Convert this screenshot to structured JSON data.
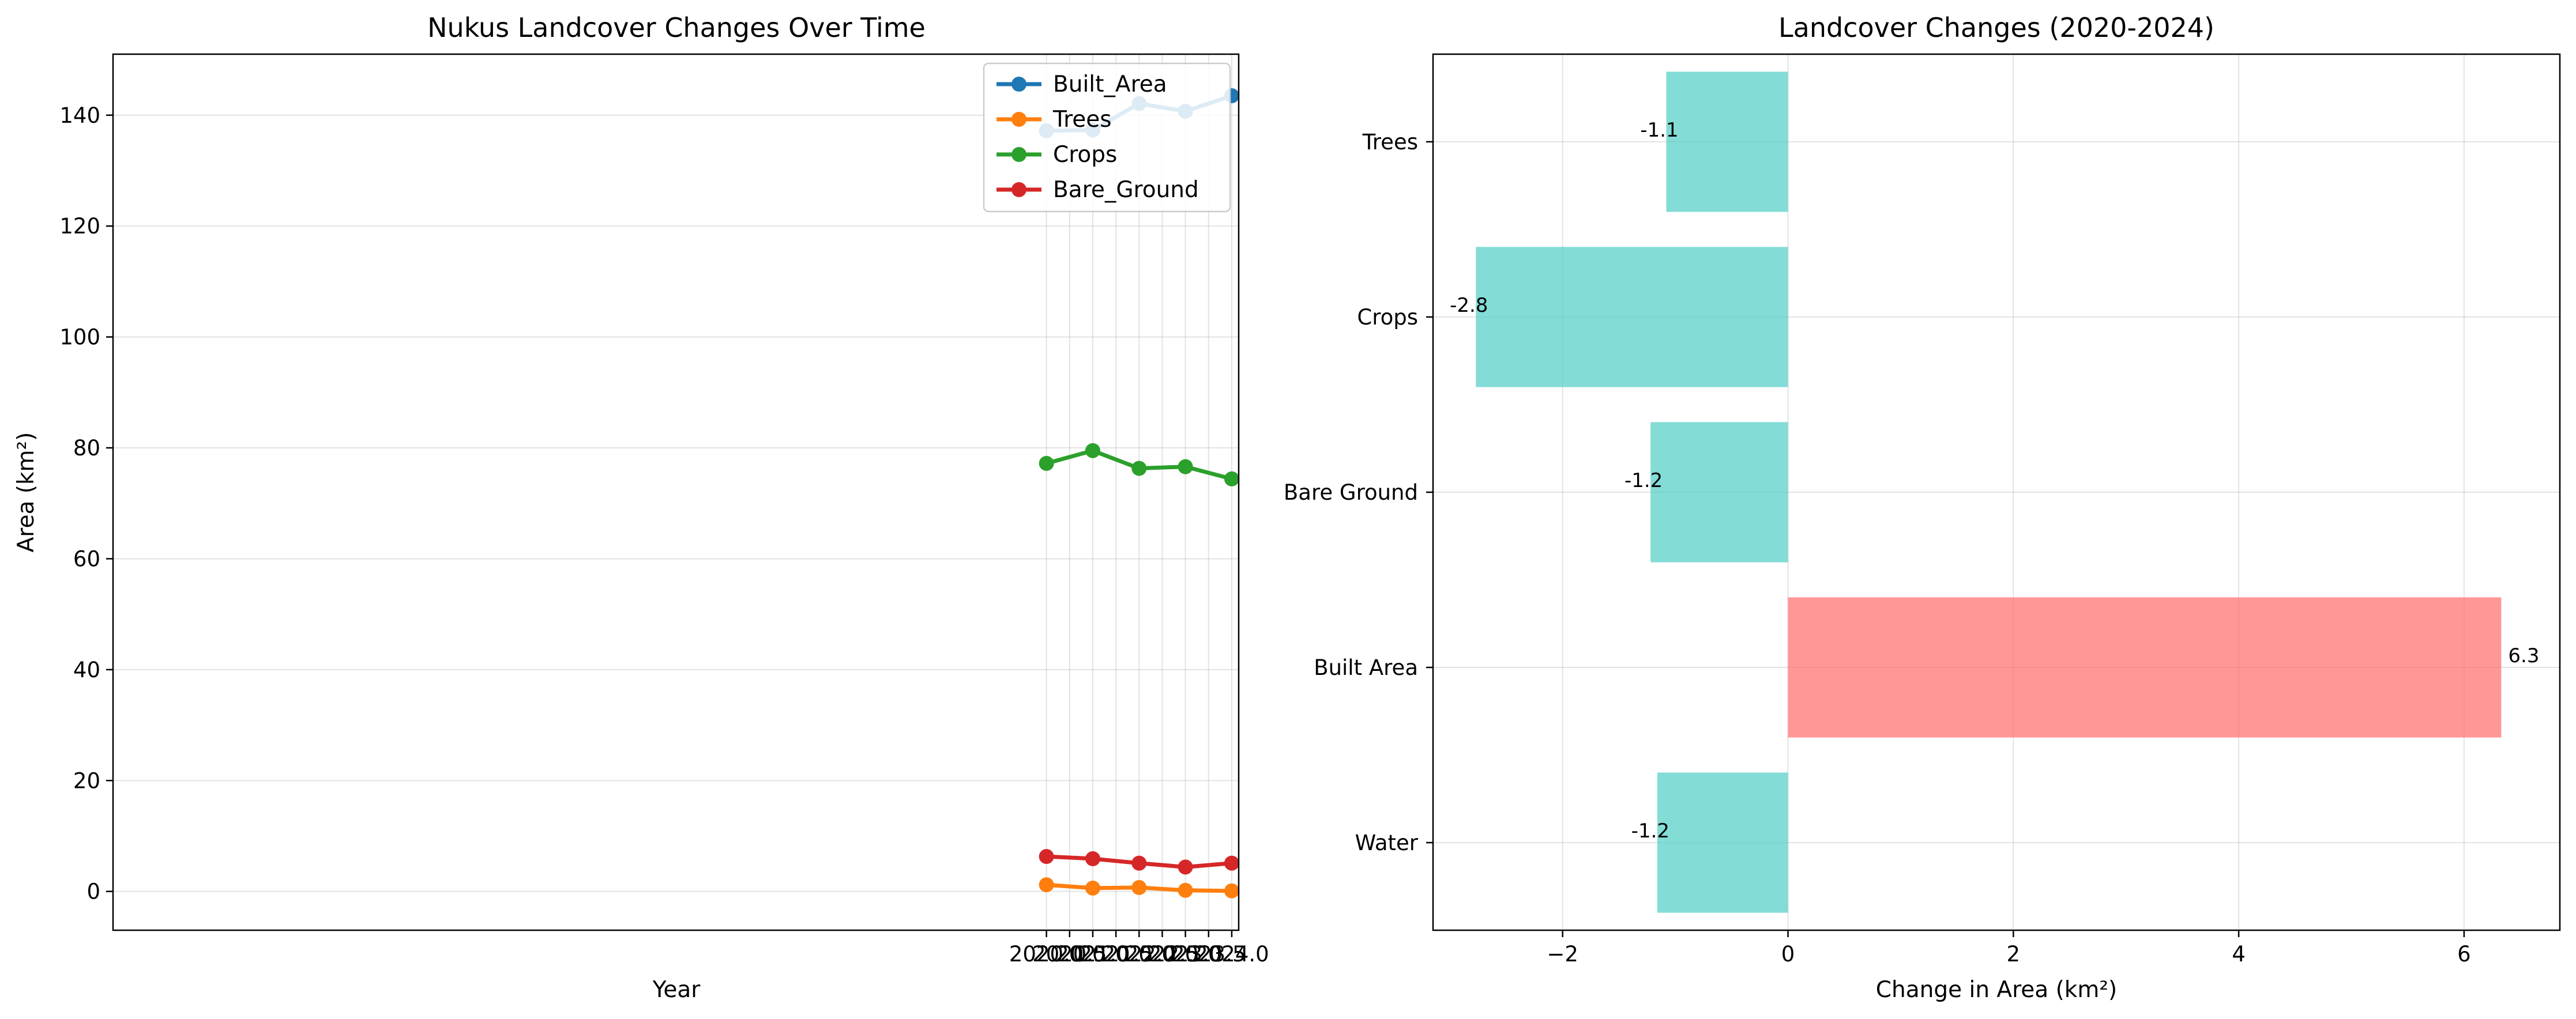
{
  "chart_data": [
    {
      "type": "line",
      "title": "Nukus Landcover Changes Over Time",
      "xlabel": "Year",
      "ylabel": "Area (km²)",
      "xlim": [
        1999.85,
        2024.15
      ],
      "ylim": [
        -7,
        151
      ],
      "x_ticks": [
        2020.0,
        2020.5,
        2021.0,
        2021.5,
        2022.0,
        2022.5,
        2023.0,
        2023.5,
        2024.0
      ],
      "x_tick_labels": [
        "2020.0",
        "2020.5",
        "2021.0",
        "2021.5",
        "2022.0",
        "2022.5",
        "2023.0",
        "2023.5",
        "2024.0"
      ],
      "y_ticks": [
        0,
        20,
        40,
        60,
        80,
        100,
        120,
        140
      ],
      "y_tick_labels": [
        "0",
        "20",
        "40",
        "60",
        "80",
        "100",
        "120",
        "140"
      ],
      "x": [
        2020,
        2021,
        2022,
        2023,
        2024
      ],
      "series": [
        {
          "name": "Built_Area",
          "color": "#1f77b4",
          "values": [
            137.2,
            137.3,
            142.1,
            140.7,
            143.5
          ]
        },
        {
          "name": "Trees",
          "color": "#ff7f0e",
          "values": [
            1.2,
            0.6,
            0.7,
            0.2,
            0.1
          ]
        },
        {
          "name": "Crops",
          "color": "#2ca02c",
          "values": [
            77.2,
            79.5,
            76.3,
            76.6,
            74.4
          ]
        },
        {
          "name": "Bare_Ground",
          "color": "#d62728",
          "values": [
            6.3,
            5.9,
            5.1,
            4.4,
            5.1
          ]
        }
      ],
      "grid": true,
      "legend_position": "top-right"
    },
    {
      "type": "bar",
      "orientation": "horizontal",
      "title": "Landcover Changes (2020-2024)",
      "xlabel": "Change in Area (km²)",
      "ylabel": "",
      "xlim": [
        -3.15,
        6.85
      ],
      "x_ticks": [
        -2,
        0,
        2,
        4,
        6
      ],
      "x_tick_labels": [
        "−2",
        "0",
        "2",
        "4",
        "6"
      ],
      "categories": [
        "Water",
        "Built Area",
        "Bare Ground",
        "Crops",
        "Trees"
      ],
      "values": [
        -1.16,
        6.33,
        -1.22,
        -2.77,
        -1.08
      ],
      "value_labels": [
        "-1.2",
        "6.3",
        "-1.2",
        "-2.8",
        "-1.1"
      ],
      "colors": {
        "negative": "#4ecdc4",
        "positive": "#ff6b6b"
      },
      "grid": true
    }
  ]
}
